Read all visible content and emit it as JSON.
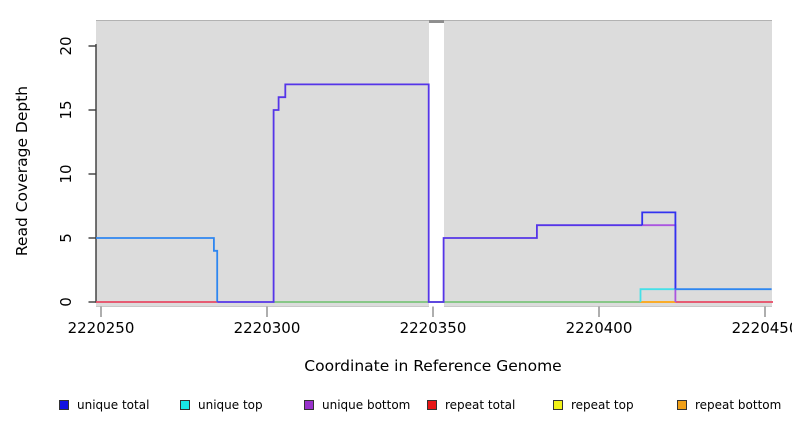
{
  "chart_data": {
    "type": "line",
    "title": "",
    "xlabel": "Coordinate in Reference Genome",
    "ylabel": "Read Coverage Depth",
    "xlim": [
      2220248.5,
      2220452.5
    ],
    "ylim": [
      0,
      22.3
    ],
    "grid": false,
    "plot_bg_color": "#dcdcdc",
    "x_ticks": [
      {
        "value": 2220250,
        "label": "2220250"
      },
      {
        "value": 2220300,
        "label": "2220300"
      },
      {
        "value": 2220350,
        "label": "2220350"
      },
      {
        "value": 2220400,
        "label": "2220400"
      },
      {
        "value": 2220450,
        "label": "2220450"
      }
    ],
    "y_ticks": [
      {
        "value": 0,
        "label": "0"
      },
      {
        "value": 5,
        "label": "5"
      },
      {
        "value": 10,
        "label": "10"
      },
      {
        "value": 15,
        "label": "15"
      },
      {
        "value": 20,
        "label": "20"
      }
    ],
    "coverage_gap": {
      "x0": 2220348.7,
      "x1": 2220353.2
    },
    "legend": {
      "position": "bottom",
      "entries": [
        {
          "label": "unique total",
          "color": "#1212e0"
        },
        {
          "label": "unique top",
          "color": "#18e8e8"
        },
        {
          "label": "unique bottom",
          "color": "#9932cc"
        },
        {
          "label": "repeat total",
          "color": "#e81616"
        },
        {
          "label": "repeat top",
          "color": "#f2f218"
        },
        {
          "label": "repeat bottom",
          "color": "#f0a018"
        }
      ]
    },
    "series": [
      {
        "name": "repeat-total-baseline-left",
        "color": "#e84a64",
        "points": [
          [
            2220248.5,
            0
          ],
          [
            2220285,
            0
          ]
        ]
      },
      {
        "name": "baseline-mid-green",
        "color": "#7cc47c",
        "points": [
          [
            2220302,
            0
          ],
          [
            2220412.5,
            0
          ]
        ]
      },
      {
        "name": "repeat-bottom-segment",
        "color": "#ffa510",
        "points": [
          [
            2220412.5,
            0
          ],
          [
            2220423,
            0
          ]
        ]
      },
      {
        "name": "repeat-total-baseline-right",
        "color": "#e84a64",
        "points": [
          [
            2220423,
            0
          ],
          [
            2220452.5,
            0
          ]
        ]
      },
      {
        "name": "unique-total-plus-top-left",
        "color": "#2e86f0",
        "points": [
          [
            2220248.5,
            5
          ],
          [
            2220284,
            5
          ],
          [
            2220284,
            4
          ],
          [
            2220285,
            4
          ],
          [
            2220285,
            0
          ]
        ]
      },
      {
        "name": "unique-total-plus-bottom",
        "color": "#5535e8",
        "points": [
          [
            2220285,
            0
          ],
          [
            2220302,
            0
          ],
          [
            2220302,
            15
          ],
          [
            2220303.5,
            15
          ],
          [
            2220303.5,
            16
          ],
          [
            2220305.5,
            16
          ],
          [
            2220305.5,
            17
          ],
          [
            2220348.7,
            17
          ],
          [
            2220348.7,
            0
          ],
          [
            2220353.2,
            0
          ],
          [
            2220353.2,
            5
          ],
          [
            2220381.3,
            5
          ],
          [
            2220381.3,
            6
          ],
          [
            2220413,
            6
          ]
        ]
      },
      {
        "name": "unique-top-step",
        "color": "#45e0e8",
        "points": [
          [
            2220412.5,
            0
          ],
          [
            2220412.5,
            1
          ],
          [
            2220423,
            1
          ]
        ]
      },
      {
        "name": "unique-bottom-step",
        "color": "#aa55e0",
        "points": [
          [
            2220413,
            6
          ],
          [
            2220423,
            6
          ],
          [
            2220423,
            0
          ]
        ]
      },
      {
        "name": "unique-total-peak-right",
        "color": "#3232f0",
        "points": [
          [
            2220413,
            6
          ],
          [
            2220413,
            7
          ],
          [
            2220423,
            7
          ],
          [
            2220423,
            1
          ]
        ]
      },
      {
        "name": "unique-total-plus-top-right",
        "color": "#2e86f0",
        "points": [
          [
            2220423,
            1
          ],
          [
            2220452,
            1
          ]
        ]
      }
    ]
  }
}
